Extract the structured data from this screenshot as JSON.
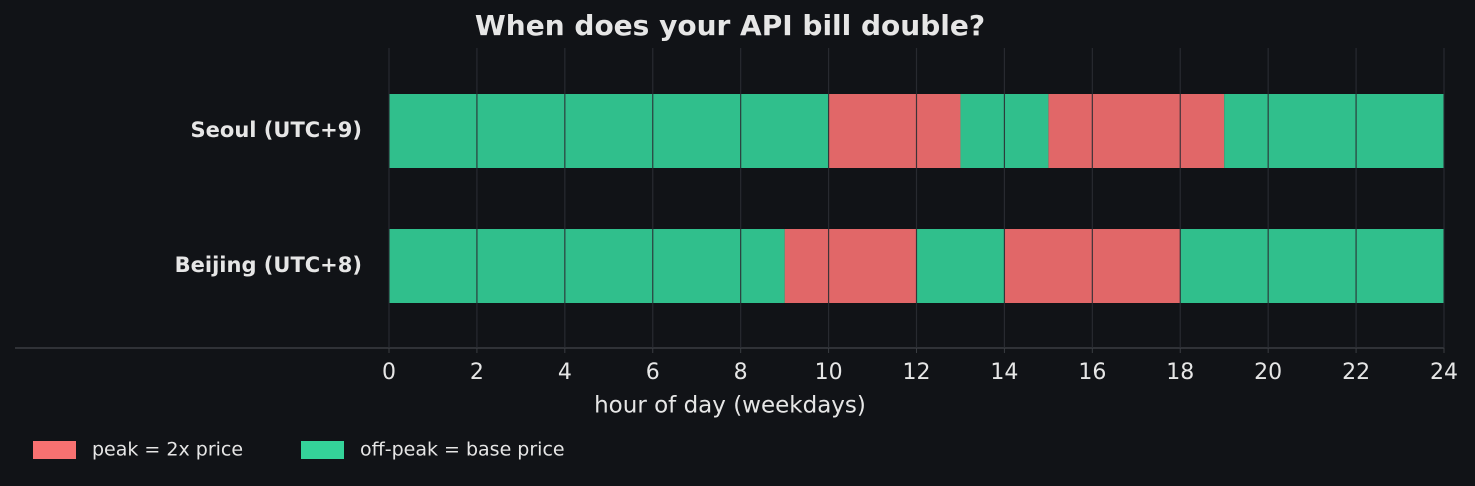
{
  "chart_data": {
    "type": "broken_bar",
    "title": "When does your API bill double?",
    "xlabel": "hour of day (weekdays)",
    "categories": [
      "Seoul (UTC+9)",
      "Beijing (UTC+8)"
    ],
    "series": [
      {
        "name": "peak = 2x price",
        "color": "#f87171",
        "ranges": [
          [
            [
              10,
              13
            ],
            [
              15,
              19
            ]
          ],
          [
            [
              9,
              12
            ],
            [
              14,
              18
            ]
          ]
        ]
      },
      {
        "name": "off-peak = base price",
        "color": "#34d399",
        "ranges": [
          [
            [
              0,
              10
            ],
            [
              13,
              15
            ],
            [
              19,
              24
            ]
          ],
          [
            [
              0,
              9
            ],
            [
              12,
              14
            ],
            [
              18,
              24
            ]
          ]
        ]
      }
    ],
    "xlim": [
      0,
      24
    ],
    "xticks": [
      0,
      2,
      4,
      6,
      8,
      10,
      12,
      14,
      16,
      18,
      20,
      22,
      24
    ],
    "grid": true,
    "legend": "bottom left"
  }
}
